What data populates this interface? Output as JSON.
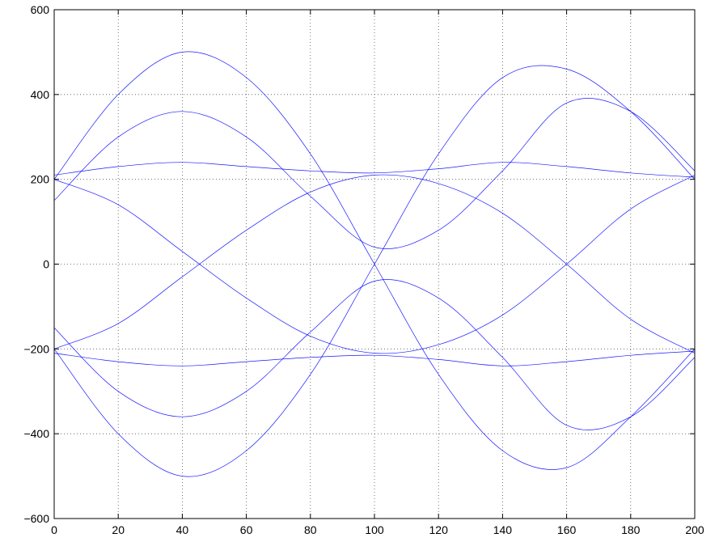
{
  "chart_data": {
    "type": "line",
    "title": "",
    "xlabel": "",
    "ylabel": "",
    "xlim": [
      0,
      200
    ],
    "ylim": [
      -600,
      600
    ],
    "x_ticks": [
      "0",
      "20",
      "40",
      "60",
      "80",
      "100",
      "120",
      "140",
      "160",
      "180",
      "200"
    ],
    "y_ticks": [
      "600",
      "400",
      "200",
      "0",
      "−200",
      "−400",
      "−600"
    ],
    "grid": true,
    "line_color": "#0000ff",
    "series": [
      {
        "x": [
          0,
          20,
          40,
          60,
          80,
          100,
          120,
          140,
          160,
          180,
          200
        ],
        "values": [
          200,
          400,
          500,
          440,
          260,
          0,
          -260,
          -440,
          -480,
          -360,
          -200
        ]
      },
      {
        "x": [
          0,
          20,
          40,
          60,
          80,
          100,
          120,
          140,
          160,
          180,
          200
        ],
        "values": [
          -200,
          -400,
          -500,
          -440,
          -260,
          0,
          260,
          440,
          460,
          360,
          200
        ]
      },
      {
        "x": [
          0,
          20,
          40,
          60,
          80,
          100,
          120,
          140,
          160,
          180,
          200
        ],
        "values": [
          200,
          140,
          30,
          -80,
          -170,
          -210,
          -190,
          -120,
          0,
          130,
          210
        ]
      },
      {
        "x": [
          0,
          20,
          40,
          60,
          80,
          100,
          120,
          140,
          160,
          180,
          200
        ],
        "values": [
          -200,
          -140,
          -30,
          80,
          170,
          210,
          190,
          120,
          0,
          -130,
          -210
        ]
      },
      {
        "x": [
          0,
          20,
          40,
          60,
          80,
          100,
          120,
          140,
          160,
          180,
          200
        ],
        "values": [
          210,
          230,
          240,
          230,
          220,
          215,
          225,
          240,
          230,
          215,
          205
        ]
      },
      {
        "x": [
          0,
          20,
          40,
          60,
          80,
          100,
          120,
          140,
          160,
          180,
          200
        ],
        "values": [
          -210,
          -230,
          -240,
          -230,
          -220,
          -215,
          -225,
          -240,
          -230,
          -215,
          -205
        ]
      },
      {
        "x": [
          0,
          20,
          40,
          60,
          80,
          100,
          120,
          140,
          160,
          180,
          200
        ],
        "values": [
          150,
          300,
          360,
          300,
          160,
          40,
          80,
          220,
          380,
          360,
          220
        ]
      },
      {
        "x": [
          0,
          20,
          40,
          60,
          80,
          100,
          120,
          140,
          160,
          180,
          200
        ],
        "values": [
          -150,
          -300,
          -360,
          -300,
          -160,
          -40,
          -80,
          -220,
          -380,
          -360,
          -220
        ]
      }
    ]
  }
}
